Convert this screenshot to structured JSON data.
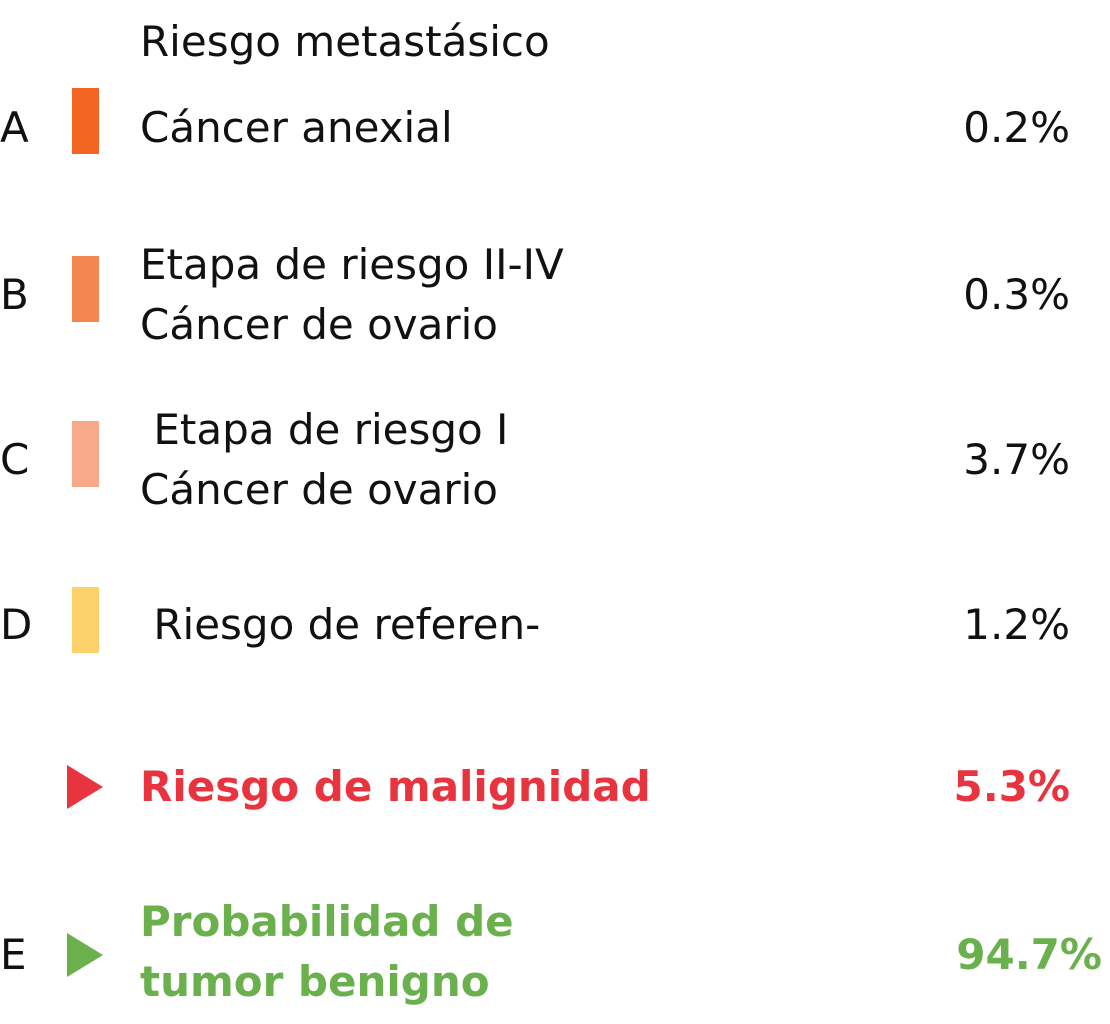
{
  "header": "Riesgo metastásico",
  "rows": [
    {
      "letter": "A",
      "line1": "Cáncer anexial",
      "value": "0.2%",
      "color": "#f26522"
    },
    {
      "letter": "B",
      "line1": "Etapa de riesgo II-IV",
      "line2": "Cáncer de ovario",
      "value": "0.3%",
      "color": "#f4864f"
    },
    {
      "letter": "C",
      "line1": " Etapa de riesgo I",
      "line2": "Cáncer de ovario",
      "value": "3.7%",
      "color": "#f7a98a"
    },
    {
      "letter": "D",
      "line1": " Riesgo de referen-",
      "value": "1.2%",
      "color": "#fdd16a"
    }
  ],
  "malignancy": {
    "label": "Riesgo de malignidad",
    "value": "5.3%",
    "color": "#e8343f"
  },
  "benign": {
    "letter": "E",
    "line1": "Probabilidad de",
    "line2": "tumor benigno",
    "value": "94.7%",
    "color": "#6ab04c"
  }
}
